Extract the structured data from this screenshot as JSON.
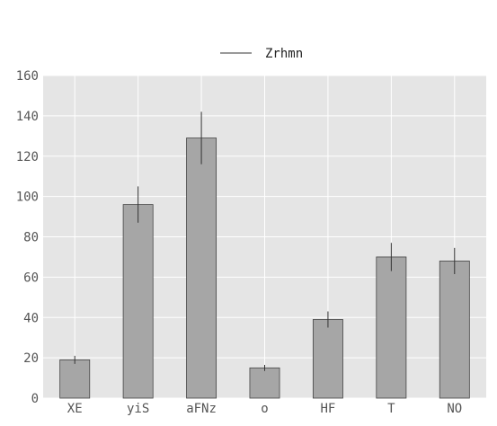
{
  "chart_data": {
    "type": "bar",
    "categories": [
      "XE",
      "yiS",
      "aFNz",
      "o",
      "HF",
      "T",
      "NO"
    ],
    "series": [
      {
        "name": "Zrhmn",
        "values": [
          19,
          96,
          129,
          15,
          39,
          70,
          68
        ],
        "errors": [
          2,
          9,
          13,
          1.5,
          4,
          7,
          6.5
        ]
      }
    ],
    "ylim": [
      0,
      160
    ],
    "yticks": [
      0,
      20,
      40,
      60,
      80,
      100,
      120,
      140,
      160
    ],
    "grid": true,
    "legend_position": "top-center",
    "title": "",
    "xlabel": "",
    "ylabel": "",
    "colors": {
      "plot_background": "#e5e5e5",
      "grid": "#ffffff",
      "bar_fill": "#a6a6a6",
      "bar_edge": "#444444",
      "errorbar": "#333333"
    }
  }
}
